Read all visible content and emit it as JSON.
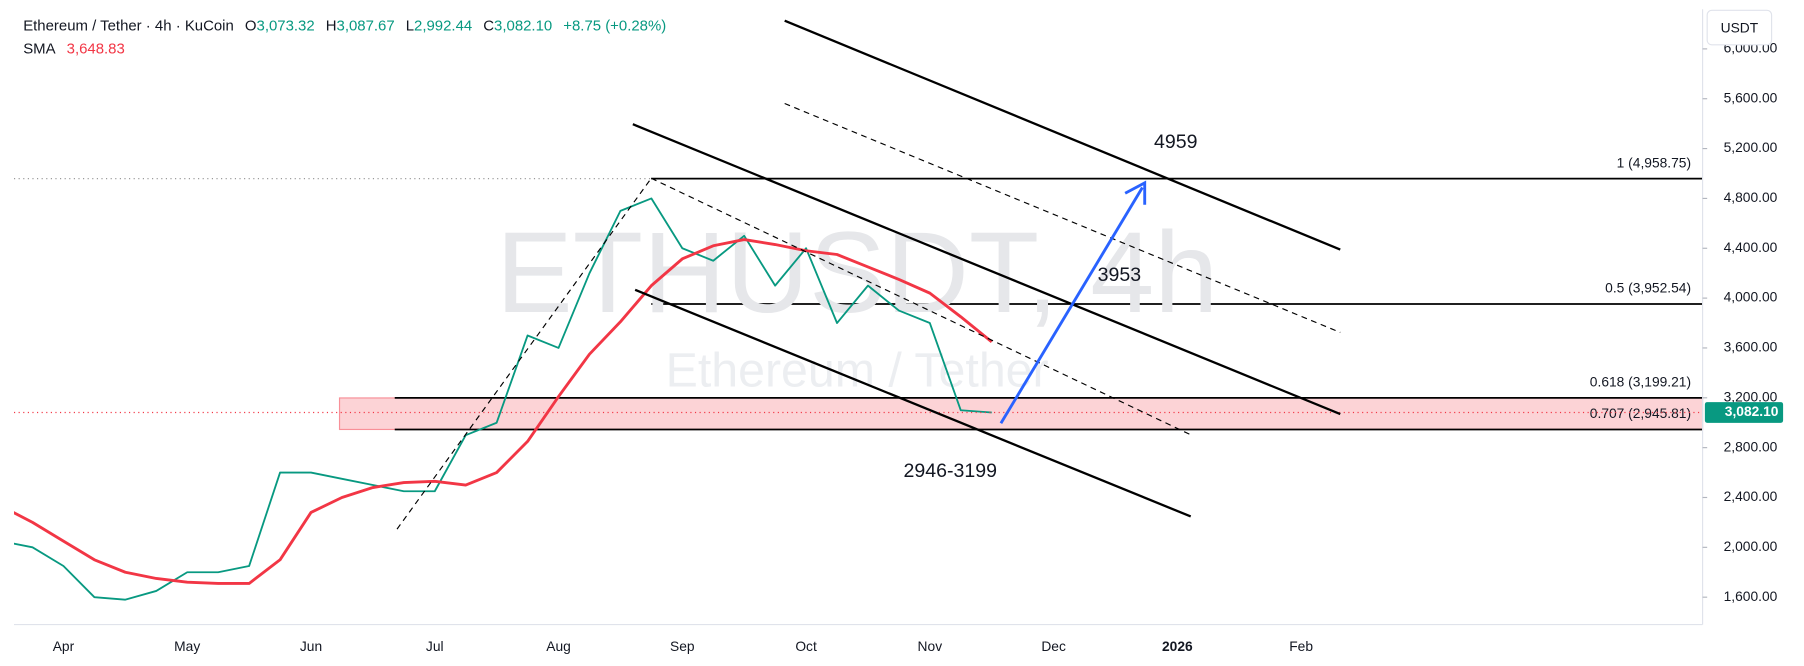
{
  "chart_data": {
    "type": "line",
    "title": "Ethereum / Tether · 4h · KuCoin",
    "ohlc": [
      {
        "label": "O",
        "value": "3,073.32"
      },
      {
        "label": "H",
        "value": "3,087.67"
      },
      {
        "label": "L",
        "value": "2,992.44"
      },
      {
        "label": "C",
        "value": "3,082.10"
      }
    ],
    "change": "+8.75 (+0.28%)",
    "currency": "USDT",
    "watermark": "ETHUSDT, 4h",
    "watermark_subtitle": "Ethereum / Tether",
    "categories": [
      null,
      null,
      "Apr",
      null,
      null,
      null,
      "May",
      null,
      null,
      null,
      "Jun",
      null,
      null,
      null,
      "Jul",
      null,
      null,
      null,
      "Aug",
      null,
      null,
      null,
      "Sep",
      null,
      null,
      null,
      "Oct",
      null,
      null,
      null,
      "Nov",
      null,
      null,
      null,
      "Dec",
      null,
      null,
      null,
      "2026",
      null,
      null,
      null,
      "Feb",
      null,
      null,
      null,
      null,
      null,
      null,
      null,
      null,
      null,
      null,
      null,
      null
    ],
    "series": [
      {
        "name": "ETHUSDT, 4h",
        "color": "#089981",
        "values": [
          2050,
          2000,
          1850,
          1600,
          1580,
          1650,
          1800,
          1800,
          1850,
          2600,
          2600,
          2550,
          2500,
          2450,
          2450,
          2900,
          3000,
          3700,
          3600,
          4200,
          4700,
          4800,
          4400,
          4300,
          4500,
          4100,
          4400,
          3800,
          4100,
          3900,
          3800,
          3100,
          3082.1,
          null,
          null,
          null,
          null,
          null,
          null,
          null,
          null,
          null,
          null,
          null,
          null,
          null,
          null,
          null,
          null,
          null,
          null,
          null,
          null,
          null,
          null
        ]
      },
      {
        "name": "SMA",
        "color": "#f23645",
        "last_label": "3,648.83",
        "values": [
          2330,
          2200,
          2050,
          1900,
          1800,
          1750,
          1720,
          1710,
          1710,
          1900,
          2280,
          2400,
          2480,
          2520,
          2530,
          2500,
          2600,
          2850,
          3210,
          3550,
          3810,
          4100,
          4315,
          4420,
          4470,
          4430,
          4380,
          4350,
          4250,
          4150,
          4040,
          3850,
          3648.83,
          null,
          null,
          null,
          null,
          null,
          null,
          null,
          null,
          null,
          null,
          null,
          null,
          null,
          null,
          null,
          null,
          null,
          null,
          null,
          null,
          null,
          null
        ]
      }
    ],
    "ylim": [
      1380,
      6300
    ],
    "yticks": [
      {
        "value": 1600,
        "label": "1,600.00"
      },
      {
        "value": 2000,
        "label": "2,000.00"
      },
      {
        "value": 2400,
        "label": "2,400.00"
      },
      {
        "value": 2800,
        "label": "2,800.00"
      },
      {
        "value": 3200,
        "label": "3,200.00"
      },
      {
        "value": 3600,
        "label": "3,600.00"
      },
      {
        "value": 4000,
        "label": "4,000.00"
      },
      {
        "value": 4400,
        "label": "4,400.00"
      },
      {
        "value": 4800,
        "label": "4,800.00"
      },
      {
        "value": 5200,
        "label": "5,200.00"
      },
      {
        "value": 5600,
        "label": "5,600.00"
      },
      {
        "value": 6000,
        "label": "6,000.00"
      }
    ],
    "fib_levels": [
      {
        "value": 4958.75,
        "label": "1 (4,958.75)"
      },
      {
        "value": 3952.54,
        "label": "0.5 (3,952.54)"
      },
      {
        "value": 3199.21,
        "label": "0.618 (3,199.21)"
      },
      {
        "value": 2945.81,
        "label": "0.707 (2,945.81)"
      }
    ],
    "last_price": {
      "value": 3082.1,
      "label": "3,082.10"
    },
    "annotations": [
      "4959",
      "3953",
      "2946-3199"
    ]
  }
}
